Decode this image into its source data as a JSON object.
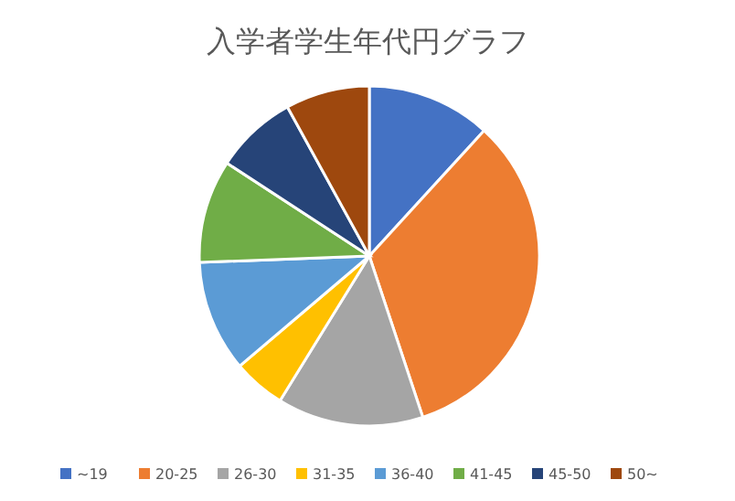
{
  "chart_data": {
    "type": "pie",
    "title": "入学者学生年代円グラフ",
    "categories": [
      "~19",
      "20-25",
      "26-30",
      "31-35",
      "36-40",
      "41-45",
      "45-50",
      "50~"
    ],
    "values": [
      11.8,
      33.1,
      13.9,
      5,
      10.6,
      9.8,
      7.8,
      8
    ],
    "colors": [
      "#4472c4",
      "#ed7d31",
      "#a5a5a5",
      "#ffc000",
      "#5b9bd5",
      "#70ad47",
      "#264478",
      "#9e480e"
    ],
    "legend": "bottom"
  }
}
